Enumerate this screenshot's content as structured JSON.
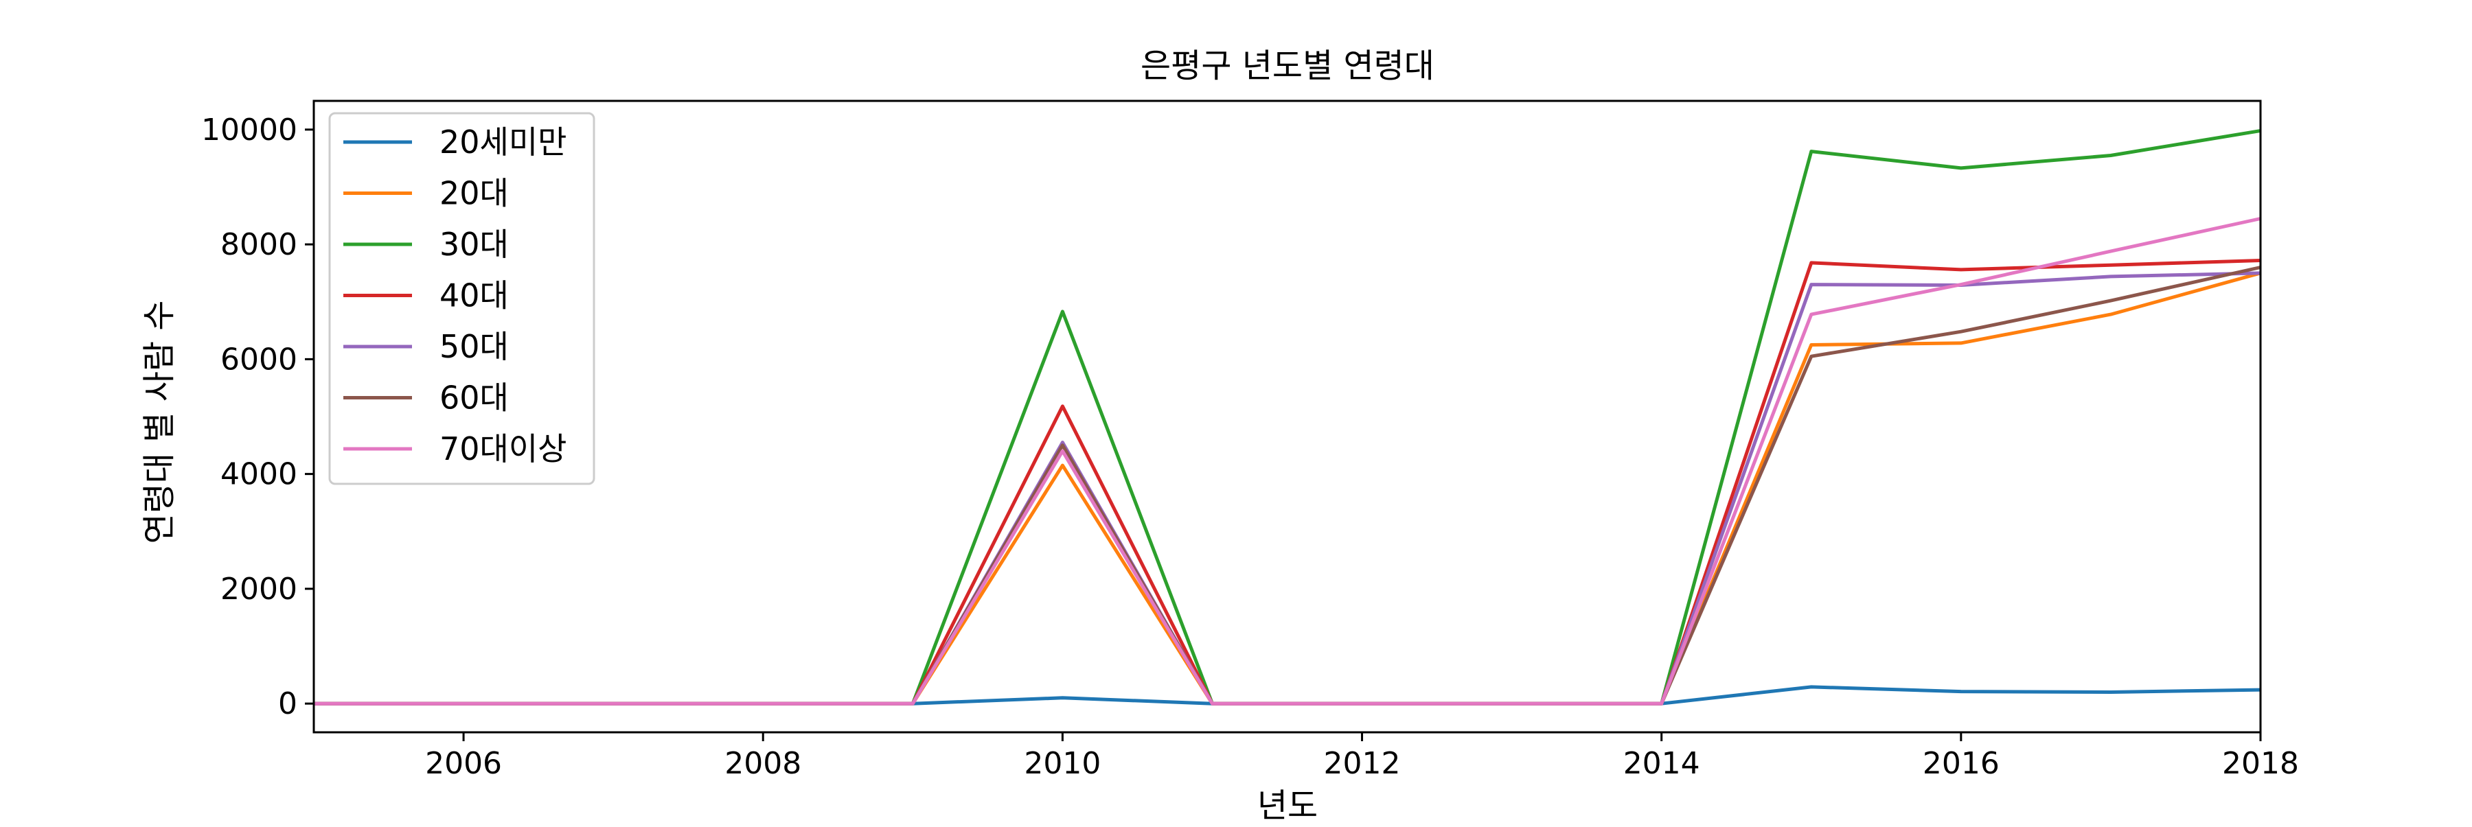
{
  "chart_data": {
    "type": "line",
    "title": "은평구 년도별 연령대",
    "xlabel": "년도",
    "ylabel": "연령대 별 사람 수",
    "x": [
      2005,
      2006,
      2007,
      2008,
      2009,
      2010,
      2011,
      2012,
      2013,
      2014,
      2015,
      2016,
      2017,
      2018
    ],
    "xlim": [
      2005,
      2018
    ],
    "ylim": [
      -500,
      10500
    ],
    "xticks": [
      2006,
      2008,
      2010,
      2012,
      2014,
      2016,
      2018
    ],
    "yticks": [
      0,
      2000,
      4000,
      6000,
      8000,
      10000
    ],
    "grid": false,
    "legend_position": "upper left",
    "series": [
      {
        "name": "20세미만",
        "color": "#1f77b4",
        "values": [
          0,
          0,
          0,
          0,
          0,
          100,
          0,
          0,
          0,
          0,
          290,
          210,
          200,
          240
        ]
      },
      {
        "name": "20대",
        "color": "#ff7f0e",
        "values": [
          0,
          0,
          0,
          0,
          0,
          4150,
          0,
          0,
          0,
          0,
          6250,
          6280,
          6780,
          7500
        ]
      },
      {
        "name": "30대",
        "color": "#2ca02c",
        "values": [
          0,
          0,
          0,
          0,
          0,
          6830,
          0,
          0,
          0,
          0,
          9620,
          9330,
          9550,
          9980
        ]
      },
      {
        "name": "40대",
        "color": "#d62728",
        "values": [
          0,
          0,
          0,
          0,
          0,
          5180,
          0,
          0,
          0,
          0,
          7680,
          7560,
          7640,
          7720
        ]
      },
      {
        "name": "50대",
        "color": "#9467bd",
        "values": [
          0,
          0,
          0,
          0,
          0,
          4550,
          0,
          0,
          0,
          0,
          7300,
          7290,
          7440,
          7500
        ]
      },
      {
        "name": "60대",
        "color": "#8c564b",
        "values": [
          0,
          0,
          0,
          0,
          0,
          4500,
          0,
          0,
          0,
          0,
          6050,
          6480,
          7020,
          7600
        ]
      },
      {
        "name": "70대이상",
        "color": "#e377c2",
        "values": [
          0,
          0,
          0,
          0,
          0,
          4400,
          0,
          0,
          0,
          0,
          6780,
          7300,
          7880,
          8450
        ]
      }
    ]
  }
}
